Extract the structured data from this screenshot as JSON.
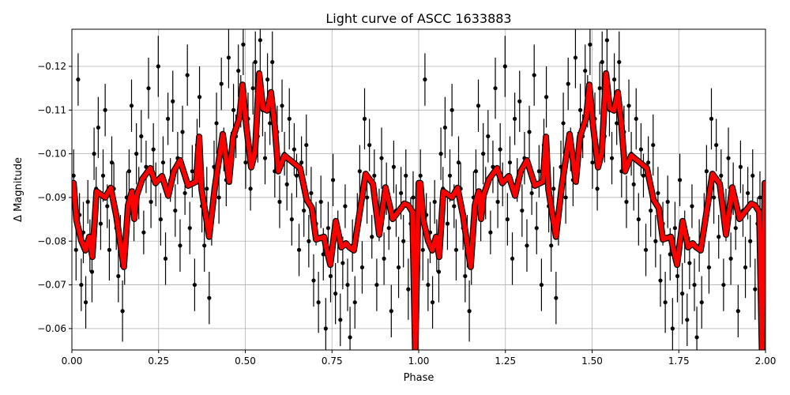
{
  "chart_data": {
    "type": "scatter",
    "title": "Light curve of ASCC 1633883",
    "xlabel": "Phase",
    "ylabel": "Δ Magnitude",
    "xlim": [
      0,
      2
    ],
    "ylim": [
      -0.0551,
      -0.1285
    ],
    "y_inverted": true,
    "grid": true,
    "x_ticks": [
      "0.00",
      "0.25",
      "0.50",
      "0.75",
      "1.00",
      "1.25",
      "1.50",
      "1.75",
      "2.00"
    ],
    "x_tick_values": [
      0,
      0.25,
      0.5,
      0.75,
      1.0,
      1.25,
      1.5,
      1.75,
      2.0
    ],
    "y_ticks": [
      "−0.12",
      "−0.11",
      "−0.10",
      "−0.09",
      "−0.08",
      "−0.07",
      "−0.06"
    ],
    "y_tick_values": [
      -0.12,
      -0.11,
      -0.1,
      -0.09,
      -0.08,
      -0.07,
      -0.06
    ],
    "colors": {
      "points": "#000000",
      "binned_curve": "#ff0000",
      "grid": "#b0b0b0"
    },
    "points_repeat_period": 1,
    "points": [
      [
        0.005,
        -0.095,
        0.006
      ],
      [
        0.012,
        -0.078,
        0.007
      ],
      [
        0.018,
        -0.117,
        0.006
      ],
      [
        0.022,
        -0.086,
        0.005
      ],
      [
        0.027,
        -0.07,
        0.006
      ],
      [
        0.033,
        -0.082,
        0.007
      ],
      [
        0.04,
        -0.066,
        0.006
      ],
      [
        0.046,
        -0.089,
        0.005
      ],
      [
        0.052,
        -0.079,
        0.006
      ],
      [
        0.058,
        -0.073,
        0.007
      ],
      [
        0.064,
        -0.1,
        0.006
      ],
      [
        0.07,
        -0.092,
        0.005
      ],
      [
        0.076,
        -0.106,
        0.007
      ],
      [
        0.083,
        -0.084,
        0.006
      ],
      [
        0.09,
        -0.095,
        0.006
      ],
      [
        0.096,
        -0.11,
        0.006
      ],
      [
        0.102,
        -0.088,
        0.005
      ],
      [
        0.108,
        -0.078,
        0.007
      ],
      [
        0.115,
        -0.098,
        0.006
      ],
      [
        0.121,
        -0.092,
        0.006
      ],
      [
        0.128,
        -0.083,
        0.005
      ],
      [
        0.134,
        -0.072,
        0.006
      ],
      [
        0.14,
        -0.08,
        0.006
      ],
      [
        0.146,
        -0.064,
        0.007
      ],
      [
        0.152,
        -0.076,
        0.006
      ],
      [
        0.158,
        -0.09,
        0.006
      ],
      [
        0.165,
        -0.096,
        0.005
      ],
      [
        0.172,
        -0.111,
        0.006
      ],
      [
        0.179,
        -0.086,
        0.006
      ],
      [
        0.186,
        -0.1,
        0.007
      ],
      [
        0.193,
        -0.091,
        0.006
      ],
      [
        0.2,
        -0.104,
        0.006
      ],
      [
        0.207,
        -0.082,
        0.005
      ],
      [
        0.214,
        -0.097,
        0.006
      ],
      [
        0.221,
        -0.115,
        0.007
      ],
      [
        0.228,
        -0.089,
        0.006
      ],
      [
        0.235,
        -0.101,
        0.006
      ],
      [
        0.242,
        -0.093,
        0.005
      ],
      [
        0.249,
        -0.12,
        0.007
      ],
      [
        0.256,
        -0.085,
        0.006
      ],
      [
        0.263,
        -0.098,
        0.006
      ],
      [
        0.27,
        -0.076,
        0.006
      ],
      [
        0.277,
        -0.108,
        0.006
      ],
      [
        0.284,
        -0.094,
        0.005
      ],
      [
        0.291,
        -0.112,
        0.007
      ],
      [
        0.298,
        -0.087,
        0.006
      ],
      [
        0.305,
        -0.099,
        0.006
      ],
      [
        0.312,
        -0.079,
        0.006
      ],
      [
        0.319,
        -0.105,
        0.006
      ],
      [
        0.326,
        -0.091,
        0.005
      ],
      [
        0.333,
        -0.118,
        0.007
      ],
      [
        0.34,
        -0.083,
        0.006
      ],
      [
        0.347,
        -0.096,
        0.006
      ],
      [
        0.354,
        -0.07,
        0.006
      ],
      [
        0.361,
        -0.102,
        0.006
      ],
      [
        0.368,
        -0.113,
        0.007
      ],
      [
        0.375,
        -0.088,
        0.006
      ],
      [
        0.382,
        -0.079,
        0.006
      ],
      [
        0.389,
        -0.092,
        0.005
      ],
      [
        0.396,
        -0.067,
        0.006
      ],
      [
        0.403,
        -0.085,
        0.006
      ],
      [
        0.41,
        -0.097,
        0.006
      ],
      [
        0.417,
        -0.107,
        0.007
      ],
      [
        0.424,
        -0.09,
        0.006
      ],
      [
        0.431,
        -0.116,
        0.006
      ],
      [
        0.438,
        -0.101,
        0.005
      ],
      [
        0.445,
        -0.094,
        0.006
      ],
      [
        0.452,
        -0.122,
        0.007
      ],
      [
        0.459,
        -0.099,
        0.006
      ],
      [
        0.466,
        -0.11,
        0.006
      ],
      [
        0.473,
        -0.104,
        0.005
      ],
      [
        0.48,
        -0.119,
        0.006
      ],
      [
        0.487,
        -0.112,
        0.006
      ],
      [
        0.494,
        -0.125,
        0.007
      ],
      [
        0.501,
        -0.098,
        0.006
      ],
      [
        0.508,
        -0.108,
        0.006
      ],
      [
        0.515,
        -0.092,
        0.005
      ],
      [
        0.522,
        -0.115,
        0.006
      ],
      [
        0.529,
        -0.121,
        0.007
      ],
      [
        0.536,
        -0.104,
        0.006
      ],
      [
        0.543,
        -0.126,
        0.007
      ],
      [
        0.55,
        -0.11,
        0.006
      ],
      [
        0.557,
        -0.099,
        0.006
      ],
      [
        0.564,
        -0.117,
        0.006
      ],
      [
        0.571,
        -0.107,
        0.005
      ],
      [
        0.578,
        -0.121,
        0.007
      ],
      [
        0.585,
        -0.096,
        0.006
      ],
      [
        0.592,
        -0.105,
        0.006
      ],
      [
        0.599,
        -0.089,
        0.006
      ],
      [
        0.606,
        -0.111,
        0.006
      ],
      [
        0.613,
        -0.1,
        0.005
      ],
      [
        0.62,
        -0.093,
        0.006
      ],
      [
        0.627,
        -0.108,
        0.007
      ],
      [
        0.634,
        -0.085,
        0.006
      ],
      [
        0.641,
        -0.101,
        0.006
      ],
      [
        0.648,
        -0.095,
        0.005
      ],
      [
        0.655,
        -0.078,
        0.006
      ],
      [
        0.662,
        -0.098,
        0.006
      ],
      [
        0.669,
        -0.087,
        0.006
      ],
      [
        0.676,
        -0.102,
        0.007
      ],
      [
        0.683,
        -0.08,
        0.006
      ],
      [
        0.69,
        -0.091,
        0.006
      ],
      [
        0.697,
        -0.071,
        0.006
      ],
      [
        0.704,
        -0.084,
        0.005
      ],
      [
        0.711,
        -0.066,
        0.007
      ],
      [
        0.718,
        -0.089,
        0.006
      ],
      [
        0.725,
        -0.077,
        0.006
      ],
      [
        0.732,
        -0.06,
        0.007
      ],
      [
        0.739,
        -0.083,
        0.006
      ],
      [
        0.746,
        -0.072,
        0.006
      ],
      [
        0.753,
        -0.094,
        0.006
      ],
      [
        0.76,
        -0.068,
        0.007
      ],
      [
        0.767,
        -0.081,
        0.006
      ],
      [
        0.774,
        -0.062,
        0.006
      ],
      [
        0.781,
        -0.075,
        0.006
      ],
      [
        0.788,
        -0.088,
        0.005
      ],
      [
        0.795,
        -0.07,
        0.006
      ],
      [
        0.802,
        -0.058,
        0.007
      ],
      [
        0.809,
        -0.079,
        0.006
      ],
      [
        0.816,
        -0.066,
        0.006
      ],
      [
        0.823,
        -0.085,
        0.006
      ],
      [
        0.83,
        -0.096,
        0.006
      ],
      [
        0.837,
        -0.074,
        0.006
      ],
      [
        0.844,
        -0.108,
        0.007
      ],
      [
        0.851,
        -0.09,
        0.006
      ],
      [
        0.858,
        -0.102,
        0.006
      ],
      [
        0.865,
        -0.081,
        0.005
      ],
      [
        0.872,
        -0.095,
        0.006
      ],
      [
        0.879,
        -0.07,
        0.006
      ],
      [
        0.886,
        -0.086,
        0.006
      ],
      [
        0.893,
        -0.099,
        0.007
      ],
      [
        0.9,
        -0.076,
        0.006
      ],
      [
        0.907,
        -0.092,
        0.006
      ],
      [
        0.914,
        -0.083,
        0.005
      ],
      [
        0.921,
        -0.064,
        0.006
      ],
      [
        0.928,
        -0.097,
        0.006
      ],
      [
        0.935,
        -0.087,
        0.006
      ],
      [
        0.942,
        -0.074,
        0.007
      ],
      [
        0.949,
        -0.091,
        0.006
      ],
      [
        0.956,
        -0.08,
        0.006
      ],
      [
        0.963,
        -0.095,
        0.006
      ],
      [
        0.97,
        -0.069,
        0.007
      ],
      [
        0.977,
        -0.084,
        0.006
      ],
      [
        0.984,
        -0.09,
        0.006
      ],
      [
        0.991,
        -0.078,
        0.006
      ]
    ],
    "binned_curve": {
      "phase": [
        0,
        0.005,
        0.013,
        0.027,
        0.039,
        0.05,
        0.059,
        0.071,
        0.096,
        0.112,
        0.128,
        0.141,
        0.15,
        0.162,
        0.173,
        0.18,
        0.187,
        0.203,
        0.226,
        0.241,
        0.26,
        0.278,
        0.294,
        0.312,
        0.335,
        0.358,
        0.367,
        0.374,
        0.396,
        0.412,
        0.435,
        0.453,
        0.465,
        0.483,
        0.492,
        0.503,
        0.517,
        0.528,
        0.54,
        0.551,
        0.563,
        0.574,
        0.585,
        0.595,
        0.613,
        0.658,
        0.677,
        0.692,
        0.704,
        0.727,
        0.733,
        0.745,
        0.761,
        0.777,
        0.79,
        0.8,
        0.813,
        0.847,
        0.868,
        0.886,
        0.904,
        0.925,
        0.959,
        0.97,
        0.982,
        0.99
      ],
      "mag": [
        -0.0933,
        -0.0933,
        -0.0849,
        -0.0801,
        -0.0779,
        -0.081,
        -0.0764,
        -0.0914,
        -0.09,
        -0.0922,
        -0.0858,
        -0.0786,
        -0.0741,
        -0.0882,
        -0.0914,
        -0.0851,
        -0.0905,
        -0.0942,
        -0.0967,
        -0.0933,
        -0.0949,
        -0.0904,
        -0.096,
        -0.0985,
        -0.0927,
        -0.0936,
        -0.1039,
        -0.0918,
        -0.081,
        -0.0923,
        -0.1045,
        -0.0936,
        -0.1039,
        -0.1081,
        -0.1158,
        -0.1063,
        -0.0969,
        -0.1003,
        -0.1184,
        -0.1104,
        -0.1099,
        -0.1141,
        -0.1063,
        -0.096,
        -0.0996,
        -0.0967,
        -0.0895,
        -0.0876,
        -0.0804,
        -0.081,
        -0.0786,
        -0.0746,
        -0.0846,
        -0.0786,
        -0.0795,
        -0.0786,
        -0.0779,
        -0.0954,
        -0.0931,
        -0.0815,
        -0.0923,
        -0.0851,
        -0.0886,
        -0.0882,
        -0.0867,
        -0.03
      ]
    }
  }
}
